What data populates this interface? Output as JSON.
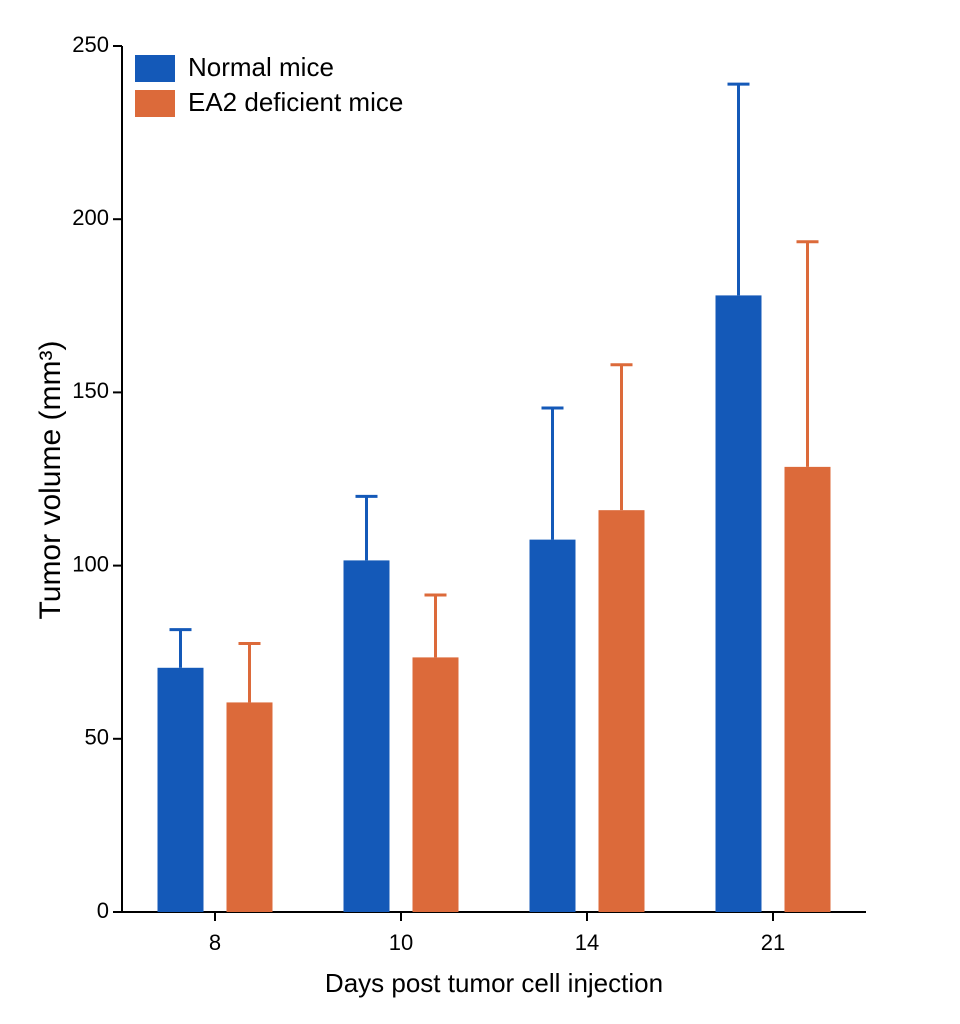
{
  "chart_data": {
    "type": "bar",
    "x_label": "Days post tumor cell injection",
    "y_label": "Tumor volume (mm³)",
    "categories": [
      "8",
      "10",
      "14",
      "21"
    ],
    "series": [
      {
        "name": "Normal mice",
        "color": "#1459b8",
        "values": [
          70.5,
          101.5,
          107.5,
          178
        ],
        "errors": [
          11,
          18.5,
          38,
          61
        ]
      },
      {
        "name": "EA2 deficient mice",
        "color": "#dc6a3a",
        "values": [
          60.5,
          73.5,
          116,
          128.5
        ],
        "errors": [
          17,
          18,
          42,
          65
        ]
      }
    ],
    "ylim": [
      0,
      250
    ],
    "yticks": [
      0,
      50,
      100,
      150,
      200,
      250
    ],
    "legend": "upper-left"
  }
}
